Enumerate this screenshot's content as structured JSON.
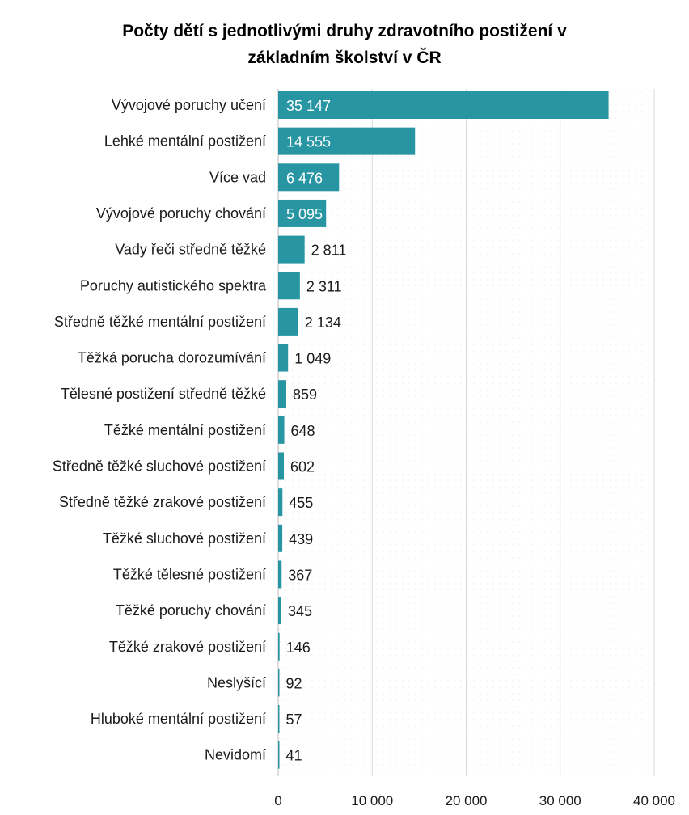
{
  "chart_data": {
    "type": "bar",
    "orientation": "horizontal",
    "title": "Počty dětí s jednotlivými druhy zdravotního postižení v základním školství v ČR",
    "title_lines": [
      "Počty dětí s jednotlivými druhy zdravotního postižení v",
      "základním školství v ČR"
    ],
    "categories": [
      "Vývojové poruchy učení",
      "Lehké mentální postižení",
      "Více vad",
      "Vývojové poruchy chování",
      "Vady řeči středně těžké",
      "Poruchy autistického spektra",
      "Středně těžké mentální postižení",
      "Těžká porucha dorozumívání",
      "Tělesné postižení středně těžké",
      "Těžké mentální postižení",
      "Středně těžké sluchové postižení",
      "Středně těžké zrakové postižení",
      "Těžké sluchové postižení",
      "Těžké tělesné postižení",
      "Těžké poruchy chování",
      "Těžké zrakové postižení",
      "Neslyšící",
      "Hluboké mentální postižení",
      "Nevidomí"
    ],
    "values": [
      35147,
      14555,
      6476,
      5095,
      2811,
      2311,
      2134,
      1049,
      859,
      648,
      602,
      455,
      439,
      367,
      345,
      146,
      92,
      57,
      41
    ],
    "value_labels": [
      "35 147",
      "14 555",
      "6 476",
      "5 095",
      "2 811",
      "2 311",
      "2 134",
      "1 049",
      "859",
      "648",
      "602",
      "455",
      "439",
      "367",
      "345",
      "146",
      "92",
      "57",
      "41"
    ],
    "x_ticks": [
      0,
      10000,
      20000,
      30000,
      40000
    ],
    "x_tick_labels": [
      "0",
      "10 000",
      "20 000",
      "30 000",
      "40 000"
    ],
    "xlim": [
      0,
      40000
    ],
    "xlabel": "",
    "ylabel": "",
    "grid": true,
    "legend": "none",
    "colors": {
      "bar": "#2796a2",
      "label_inside": "#ffffff",
      "label_outside": "#1a1a1a",
      "grid": "#d9d9d9",
      "axis": "#bfbfbf"
    }
  }
}
